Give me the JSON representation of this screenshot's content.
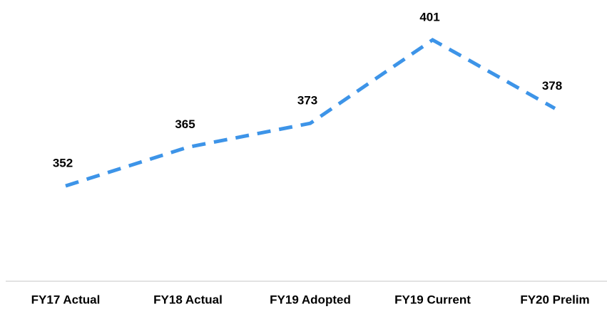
{
  "chart_data": {
    "type": "line",
    "categories": [
      "FY17 Actual",
      "FY18 Actual",
      "FY19 Adopted",
      "FY19 Current",
      "FY20 Prelim"
    ],
    "values": [
      352,
      365,
      373,
      401,
      378
    ],
    "color": "#3d94e8",
    "ylim": [
      320,
      412
    ]
  }
}
